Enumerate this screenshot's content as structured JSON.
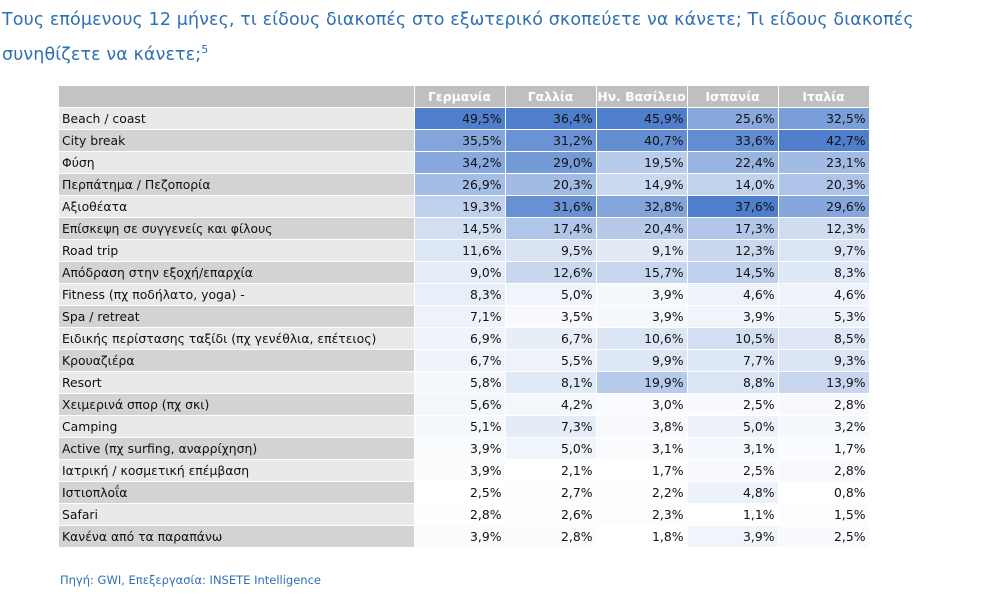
{
  "title": "Τους επόμενους 12 μήνες, τι είδους διακοπές στο εξωτερικό σκοπεύετε να κάνετε; Τι είδους διακοπές συνηθίζετε να κάνετε;",
  "title_footnote": "5",
  "source": "Πηγή: GWI, Επεξεργασία: INSETE Intelligence",
  "colors": {
    "title": "#2e6fb5",
    "header_bg": "#bfbfbf",
    "heat_low": "#ffffff",
    "heat_high": "#4f7fcc"
  },
  "chart_data": {
    "type": "heatmap",
    "columns": [
      "Γερμανία",
      "Γαλλία",
      "Ην. Βασίλειο",
      "Ισπανία",
      "Ιταλία"
    ],
    "rows": [
      {
        "label": "Beach / coast",
        "values": [
          49.5,
          36.4,
          45.9,
          25.6,
          32.5
        ]
      },
      {
        "label": "City break",
        "values": [
          35.5,
          31.2,
          40.7,
          33.6,
          42.7
        ]
      },
      {
        "label": "Φύση",
        "values": [
          34.2,
          29.0,
          19.5,
          22.4,
          23.1
        ]
      },
      {
        "label": "Περπάτημα /  Πεζοπορία",
        "values": [
          26.9,
          20.3,
          14.9,
          14.0,
          20.3
        ]
      },
      {
        "label": "Αξιοθέατα",
        "values": [
          19.3,
          31.6,
          32.8,
          37.6,
          29.6
        ]
      },
      {
        "label": "Επίσκεψη σε συγγενείς και φίλους",
        "values": [
          14.5,
          17.4,
          20.4,
          17.3,
          12.3
        ]
      },
      {
        "label": "Road trip",
        "values": [
          11.6,
          9.5,
          9.1,
          12.3,
          9.7
        ]
      },
      {
        "label": "Απόδραση στην εξοχή/επαρχία",
        "values": [
          9.0,
          12.6,
          15.7,
          14.5,
          8.3
        ]
      },
      {
        "label": "Fitness (πχ ποδήλατο, yoga) -",
        "values": [
          8.3,
          5.0,
          3.9,
          4.6,
          4.6
        ]
      },
      {
        "label": "Spa / retreat",
        "values": [
          7.1,
          3.5,
          3.9,
          3.9,
          5.3
        ]
      },
      {
        "label": "Ειδικής περίστασης ταξίδι (πχ γενέθλια, επέτειος)",
        "values": [
          6.9,
          6.7,
          10.6,
          10.5,
          8.5
        ]
      },
      {
        "label": "Κρουαζιέρα",
        "values": [
          6.7,
          5.5,
          9.9,
          7.7,
          9.3
        ]
      },
      {
        "label": "Resort",
        "values": [
          5.8,
          8.1,
          19.9,
          8.8,
          13.9
        ]
      },
      {
        "label": "Χειμερινά σπορ (πχ σκι)",
        "values": [
          5.6,
          4.2,
          3.0,
          2.5,
          2.8
        ]
      },
      {
        "label": "Camping",
        "values": [
          5.1,
          7.3,
          3.8,
          5.0,
          3.2
        ]
      },
      {
        "label": "Active (πχ surfing, αναρρίχηση)",
        "values": [
          3.9,
          5.0,
          3.1,
          3.1,
          1.7
        ]
      },
      {
        "label": "Ιατρική / κοσμετική επέμβαση",
        "values": [
          3.9,
          2.1,
          1.7,
          2.5,
          2.8
        ]
      },
      {
        "label": "Ιστιοπλοΐα",
        "values": [
          2.5,
          2.7,
          2.2,
          4.8,
          0.8
        ]
      },
      {
        "label": "Safari",
        "values": [
          2.8,
          2.6,
          2.3,
          1.1,
          1.5
        ]
      },
      {
        "label": "Κανένα από τα παραπάνω",
        "values": [
          3.9,
          2.8,
          1.8,
          3.9,
          2.5
        ]
      }
    ],
    "value_format": "percent, 1 decimal, comma separator",
    "color_scale": "per column, white (low) to blue (high)"
  }
}
